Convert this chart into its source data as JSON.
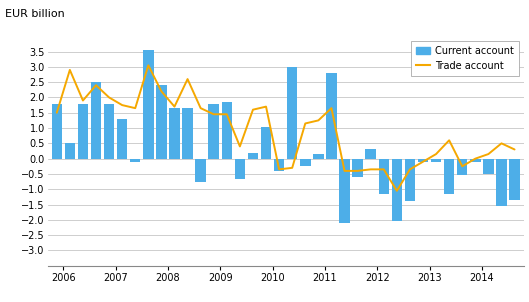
{
  "title": "EUR billion",
  "bar_color": "#4daee8",
  "line_color": "#f5a800",
  "ylim": [
    -3.5,
    4.0
  ],
  "current_account": [
    1.8,
    0.5,
    1.8,
    2.5,
    1.8,
    1.3,
    -0.1,
    3.55,
    2.4,
    1.65,
    1.65,
    -0.75,
    1.8,
    1.85,
    -0.65,
    0.2,
    1.05,
    -0.4,
    3.0,
    -0.25,
    0.15,
    2.8,
    -2.1,
    -0.6,
    0.3,
    -1.15,
    -2.05,
    -1.4,
    -0.1,
    -0.1,
    -1.15,
    -0.55,
    -0.1,
    -0.5,
    -1.55,
    -1.35
  ],
  "trade_account": [
    1.5,
    2.9,
    1.9,
    2.4,
    2.0,
    1.75,
    1.65,
    3.05,
    2.2,
    1.7,
    2.6,
    1.65,
    1.45,
    1.45,
    0.4,
    1.6,
    1.7,
    -0.35,
    -0.3,
    1.15,
    1.25,
    1.65,
    -0.4,
    -0.4,
    -0.35,
    -0.35,
    -1.05,
    -0.35,
    -0.1,
    0.15,
    0.6,
    -0.25,
    0.0,
    0.15,
    0.5,
    0.3
  ],
  "year_labels": [
    "2006",
    "2007",
    "2008",
    "2009",
    "2010",
    "2011",
    "2012",
    "2013",
    "2014"
  ],
  "year_tick_positions": [
    0.5,
    4.5,
    8.5,
    12.5,
    16.5,
    20.5,
    24.5,
    28.5,
    32.5
  ],
  "legend_bar_label": "Current account",
  "legend_line_label": "Trade account",
  "bg_color": "#ffffff",
  "grid_color": "#bbbbbb"
}
